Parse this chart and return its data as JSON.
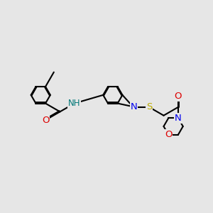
{
  "bg_color": "#e6e6e6",
  "bond_color": "#000000",
  "bond_width": 1.5,
  "dbo": 0.048,
  "atom_colors": {
    "N": "#0000ee",
    "O": "#dd0000",
    "S": "#bbaa00",
    "NH": "#007777"
  },
  "font_size": 8.5,
  "fig_size": [
    3.0,
    3.0
  ],
  "dpi": 100,
  "bl": 0.8
}
